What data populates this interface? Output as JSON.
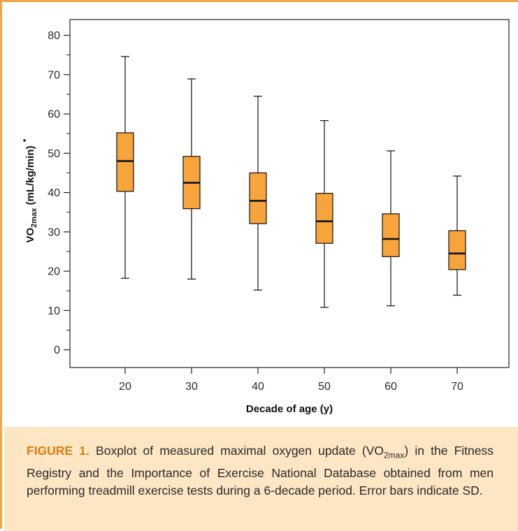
{
  "chart_data": {
    "type": "boxplot",
    "xlabel": "Decade of age (y)",
    "ylabel": {
      "prefix": "V",
      "o2": "O",
      "sub": "2max",
      "units": " (mL/kg/min)"
    },
    "ylim": [
      -4.5,
      84
    ],
    "yticks": [
      0,
      10,
      20,
      30,
      40,
      50,
      60,
      70,
      80
    ],
    "categories": [
      "20",
      "30",
      "40",
      "50",
      "60",
      "70"
    ],
    "boxes": [
      {
        "category": "20",
        "min": 18.2,
        "q1": 40.3,
        "median": 48.0,
        "q3": 55.2,
        "max": 74.6
      },
      {
        "category": "30",
        "min": 18.0,
        "q1": 35.9,
        "median": 42.5,
        "q3": 49.2,
        "max": 68.9
      },
      {
        "category": "40",
        "min": 15.2,
        "q1": 32.1,
        "median": 37.9,
        "q3": 45.0,
        "max": 64.5
      },
      {
        "category": "50",
        "min": 10.8,
        "q1": 27.1,
        "median": 32.7,
        "q3": 39.8,
        "max": 58.3
      },
      {
        "category": "60",
        "min": 11.2,
        "q1": 23.7,
        "median": 28.2,
        "q3": 34.6,
        "max": 50.6
      },
      {
        "category": "70",
        "min": 13.9,
        "q1": 20.4,
        "median": 24.5,
        "q3": 30.3,
        "max": 44.2
      }
    ],
    "grid": false,
    "colors": {
      "box_fill": "#f7a43a",
      "stroke": "#111111"
    }
  },
  "caption": {
    "lead": "FIGURE 1.",
    "text_before": " Boxplot of measured maximal oxygen update (V",
    "o2": "O",
    "sub": "2max",
    "text_after": ") in the Fitness Registry and the Importance of Exercise National Database obtained from men performing treadmill exercise tests during a 6-decade period. Error bars indicate SD."
  },
  "colors": {
    "frame": "#f0a646",
    "caption_bg": "#fde6c4",
    "caption_lead": "#e07b10"
  }
}
